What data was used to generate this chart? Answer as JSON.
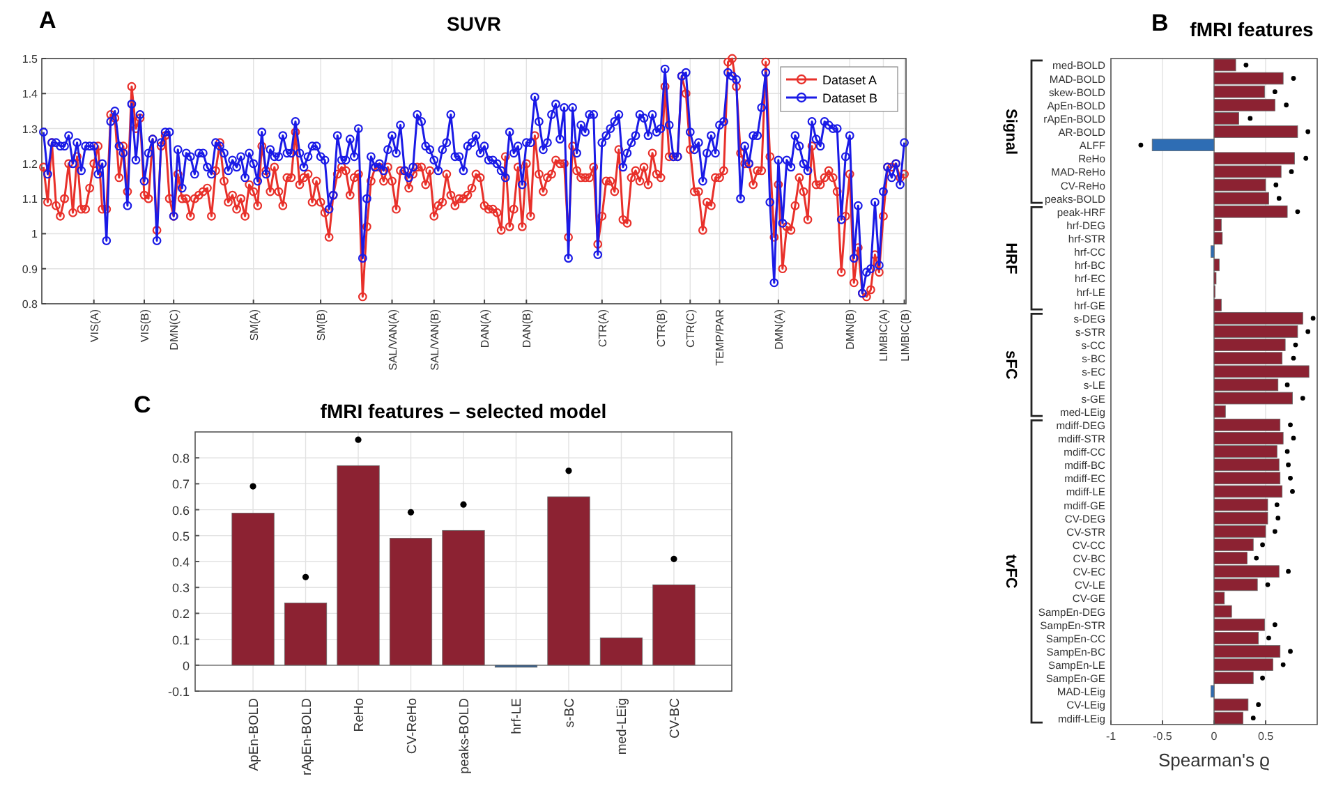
{
  "chart_data": [
    {
      "type": "line",
      "title": "SUVR",
      "annotations": [
        "A"
      ],
      "categories": [
        null,
        null,
        null,
        null,
        null,
        null,
        null,
        null,
        null,
        null,
        null,
        null,
        "VIS(A)",
        null,
        null,
        null,
        null,
        null,
        null,
        null,
        null,
        null,
        null,
        null,
        "VIS(B)",
        null,
        null,
        null,
        null,
        null,
        null,
        "DMN(C)",
        null,
        null,
        null,
        null,
        null,
        null,
        null,
        null,
        null,
        null,
        null,
        null,
        null,
        null,
        null,
        null,
        null,
        null,
        "SM(A)",
        null,
        null,
        null,
        null,
        null,
        null,
        null,
        null,
        null,
        null,
        null,
        null,
        null,
        null,
        null,
        "SM(B)",
        null,
        null,
        null,
        null,
        null,
        null,
        null,
        null,
        null,
        null,
        null,
        null,
        null,
        null,
        null,
        null,
        "SAL/VAN(A)",
        null,
        null,
        null,
        null,
        null,
        null,
        null,
        null,
        null,
        "SAL/VAN(B)",
        null,
        null,
        null,
        null,
        null,
        null,
        null,
        null,
        null,
        null,
        null,
        "DAN(A)",
        null,
        null,
        null,
        null,
        null,
        null,
        null,
        null,
        null,
        "DAN(B)",
        null,
        null,
        null,
        null,
        null,
        null,
        null,
        null,
        null,
        null,
        null,
        null,
        null,
        null,
        null,
        null,
        null,
        "CTR(A)",
        null,
        null,
        null,
        null,
        null,
        null,
        null,
        null,
        null,
        null,
        null,
        null,
        null,
        "CTR(B)",
        null,
        null,
        null,
        null,
        null,
        null,
        "CTR(C)",
        null,
        null,
        null,
        null,
        null,
        null,
        "TEMP/PAR",
        null,
        null,
        null,
        null,
        null,
        null,
        null,
        null,
        null,
        null,
        null,
        null,
        null,
        "DMN(A)",
        null,
        null,
        null,
        null,
        null,
        null,
        null,
        null,
        null,
        null,
        null,
        null,
        null,
        null,
        null,
        null,
        "DMN(B)",
        null,
        null,
        null,
        null,
        null,
        null,
        null,
        "LIMBIC(A)",
        null,
        null,
        null,
        null,
        "LIMBIC(B)"
      ],
      "ylim": [
        0.8,
        1.5
      ],
      "yticks": [
        0.8,
        0.9,
        1,
        1.1,
        1.2,
        1.3,
        1.4,
        1.5
      ],
      "grid": true,
      "legend": "top right",
      "marker": "circle",
      "line_style": "solid",
      "series": [
        {
          "name": "Dataset A",
          "color": "#e8302a",
          "values": [
            1.19,
            1.09,
            1.26,
            1.08,
            1.05,
            1.1,
            1.2,
            1.06,
            1.22,
            1.07,
            1.07,
            1.13,
            1.2,
            1.25,
            1.07,
            1.07,
            1.34,
            1.33,
            1.16,
            1.25,
            1.12,
            1.42,
            1.3,
            1.33,
            1.11,
            1.1,
            1.27,
            1.01,
            1.25,
            1.28,
            1.1,
            1.05,
            1.17,
            1.1,
            1.1,
            1.05,
            1.1,
            1.11,
            1.12,
            1.13,
            1.05,
            1.18,
            1.26,
            1.15,
            1.09,
            1.11,
            1.07,
            1.1,
            1.05,
            1.14,
            1.12,
            1.08,
            1.25,
            1.18,
            1.12,
            1.19,
            1.12,
            1.08,
            1.16,
            1.16,
            1.29,
            1.14,
            1.16,
            1.17,
            1.09,
            1.15,
            1.09,
            1.06,
            0.99,
            1.11,
            1.17,
            1.19,
            1.18,
            1.11,
            1.16,
            1.17,
            0.82,
            1.02,
            1.15,
            1.19,
            1.19,
            1.15,
            1.19,
            1.15,
            1.07,
            1.18,
            1.18,
            1.13,
            1.17,
            1.19,
            1.19,
            1.14,
            1.18,
            1.05,
            1.08,
            1.09,
            1.17,
            1.11,
            1.08,
            1.1,
            1.1,
            1.11,
            1.13,
            1.17,
            1.16,
            1.08,
            1.07,
            1.07,
            1.06,
            1.01,
            1.22,
            1.02,
            1.07,
            1.19,
            1.02,
            1.2,
            1.05,
            1.28,
            1.17,
            1.12,
            1.16,
            1.17,
            1.21,
            1.2,
            1.2,
            0.99,
            1.25,
            1.18,
            1.16,
            1.16,
            1.16,
            1.19,
            0.97,
            1.05,
            1.15,
            1.15,
            1.12,
            1.24,
            1.04,
            1.03,
            1.16,
            1.18,
            1.15,
            1.19,
            1.14,
            1.23,
            1.17,
            1.16,
            1.42,
            1.22,
            1.22,
            1.22,
            1.45,
            1.4,
            1.24,
            1.12,
            1.12,
            1.01,
            1.09,
            1.08,
            1.16,
            1.16,
            1.18,
            1.49,
            1.5,
            1.42,
            1.23,
            1.2,
            1.2,
            1.14,
            1.18,
            1.18,
            1.49,
            1.22,
            0.99,
            1.14,
            0.9,
            1.02,
            1.01,
            1.08,
            1.16,
            1.12,
            1.04,
            1.25,
            1.14,
            1.14,
            1.16,
            1.18,
            1.16,
            1.12,
            0.89,
            1.05,
            1.17,
            0.86,
            0.96,
            0.83,
            0.82,
            0.84,
            0.94,
            0.89,
            1.05,
            1.19,
            1.19,
            1.2,
            1.16,
            1.17
          ]
        },
        {
          "name": "Dataset B",
          "color": "#1a1ae6",
          "values": [
            1.29,
            1.17,
            1.26,
            1.26,
            1.25,
            1.25,
            1.28,
            1.2,
            1.26,
            1.18,
            1.25,
            1.25,
            1.25,
            1.17,
            1.2,
            0.98,
            1.32,
            1.35,
            1.25,
            1.23,
            1.08,
            1.37,
            1.21,
            1.34,
            1.15,
            1.23,
            1.27,
            0.98,
            1.26,
            1.29,
            1.29,
            1.05,
            1.24,
            1.13,
            1.23,
            1.22,
            1.17,
            1.23,
            1.23,
            1.19,
            1.17,
            1.26,
            1.25,
            1.23,
            1.18,
            1.21,
            1.19,
            1.22,
            1.16,
            1.23,
            1.2,
            1.15,
            1.29,
            1.17,
            1.24,
            1.22,
            1.22,
            1.28,
            1.23,
            1.23,
            1.32,
            1.23,
            1.19,
            1.22,
            1.25,
            1.25,
            1.22,
            1.21,
            1.07,
            1.11,
            1.28,
            1.21,
            1.21,
            1.27,
            1.22,
            1.3,
            0.93,
            1.1,
            1.22,
            1.19,
            1.2,
            1.18,
            1.24,
            1.28,
            1.23,
            1.31,
            1.18,
            1.16,
            1.19,
            1.34,
            1.32,
            1.25,
            1.24,
            1.21,
            1.18,
            1.24,
            1.26,
            1.34,
            1.22,
            1.22,
            1.18,
            1.25,
            1.26,
            1.28,
            1.23,
            1.25,
            1.21,
            1.21,
            1.2,
            1.18,
            1.16,
            1.29,
            1.23,
            1.25,
            1.14,
            1.26,
            1.26,
            1.39,
            1.32,
            1.24,
            1.26,
            1.34,
            1.37,
            1.27,
            1.36,
            0.93,
            1.36,
            1.23,
            1.31,
            1.29,
            1.34,
            1.34,
            0.94,
            1.26,
            1.28,
            1.3,
            1.32,
            1.34,
            1.19,
            1.23,
            1.26,
            1.28,
            1.34,
            1.33,
            1.28,
            1.34,
            1.29,
            1.3,
            1.47,
            1.31,
            1.22,
            1.22,
            1.45,
            1.46,
            1.29,
            1.24,
            1.26,
            1.15,
            1.23,
            1.28,
            1.23,
            1.31,
            1.32,
            1.46,
            1.45,
            1.44,
            1.1,
            1.25,
            1.2,
            1.28,
            1.28,
            1.36,
            1.46,
            1.09,
            0.86,
            1.21,
            1.03,
            1.21,
            1.19,
            1.28,
            1.25,
            1.2,
            1.18,
            1.32,
            1.27,
            1.25,
            1.32,
            1.31,
            1.3,
            1.3,
            1.04,
            1.22,
            1.28,
            0.93,
            1.08,
            0.83,
            0.89,
            0.9,
            1.09,
            0.91,
            1.12,
            1.19,
            1.16,
            1.2,
            1.14,
            1.26
          ]
        }
      ]
    },
    {
      "type": "bar",
      "orientation": "horizontal",
      "title": "fMRI features",
      "xlabel": "Spearman's ϱ",
      "annotations": [
        "B",
        "Signal",
        "HRF",
        "sFC",
        "tvFC"
      ],
      "categories": [
        "med-BOLD",
        "MAD-BOLD",
        "skew-BOLD",
        "ApEn-BOLD",
        "rApEn-BOLD",
        "AR-BOLD",
        "ALFF",
        "ReHo",
        "MAD-ReHo",
        "CV-ReHo",
        "peaks-BOLD",
        "peak-HRF",
        "hrf-DEG",
        "hrf-STR",
        "hrf-CC",
        "hrf-BC",
        "hrf-EC",
        "hrf-LE",
        "hrf-GE",
        "s-DEG",
        "s-STR",
        "s-CC",
        "s-BC",
        "s-EC",
        "s-LE",
        "s-GE",
        "med-LEig",
        "mdiff-DEG",
        "mdiff-STR",
        "mdiff-CC",
        "mdiff-BC",
        "mdiff-EC",
        "mdiff-LE",
        "mdiff-GE",
        "CV-DEG",
        "CV-STR",
        "CV-CC",
        "CV-BC",
        "CV-EC",
        "CV-LE",
        "CV-GE",
        "SampEn-DEG",
        "SampEn-STR",
        "SampEn-CC",
        "SampEn-BC",
        "SampEn-LE",
        "SampEn-GE",
        "MAD-LEig",
        "CV-LEig",
        "mdiff-LEig"
      ],
      "xlim": [
        -1,
        1
      ],
      "xticks": [
        -1,
        -0.5,
        0,
        0.5
      ],
      "grid": "x",
      "series": [
        {
          "type": "bar",
          "colors": [
            "#8c2232",
            "#8c2232",
            "#8c2232",
            "#8c2232",
            "#8c2232",
            "#8c2232",
            "#2e6db4",
            "#8c2232",
            "#8c2232",
            "#8c2232",
            "#8c2232",
            "#8c2232",
            "#8c2232",
            "#8c2232",
            "#2e6db4",
            "#8c2232",
            "#8c2232",
            "#8c2232",
            "#8c2232",
            "#8c2232",
            "#8c2232",
            "#8c2232",
            "#8c2232",
            "#8c2232",
            "#8c2232",
            "#8c2232",
            "#8c2232",
            "#8c2232",
            "#8c2232",
            "#8c2232",
            "#8c2232",
            "#8c2232",
            "#8c2232",
            "#8c2232",
            "#8c2232",
            "#8c2232",
            "#8c2232",
            "#8c2232",
            "#8c2232",
            "#8c2232",
            "#8c2232",
            "#8c2232",
            "#8c2232",
            "#8c2232",
            "#8c2232",
            "#8c2232",
            "#8c2232",
            "#2e6db4",
            "#8c2232",
            "#8c2232"
          ],
          "values": [
            0.21,
            0.67,
            0.49,
            0.59,
            0.24,
            0.81,
            -0.6,
            0.78,
            0.65,
            0.5,
            0.53,
            0.71,
            0.07,
            0.08,
            -0.03,
            0.05,
            0.02,
            0.01,
            0.07,
            0.86,
            0.81,
            0.69,
            0.66,
            0.92,
            0.62,
            0.76,
            0.11,
            0.64,
            0.67,
            0.61,
            0.63,
            0.64,
            0.66,
            0.52,
            0.52,
            0.5,
            0.38,
            0.32,
            0.63,
            0.42,
            0.1,
            0.17,
            0.49,
            0.43,
            0.64,
            0.57,
            0.38,
            -0.03,
            0.33,
            0.28
          ]
        },
        {
          "type": "scatter",
          "color": "#000000",
          "values": [
            0.31,
            0.77,
            0.59,
            0.7,
            0.35,
            0.91,
            -0.71,
            0.89,
            0.75,
            0.6,
            0.63,
            0.81,
            null,
            null,
            null,
            null,
            null,
            null,
            null,
            0.96,
            0.91,
            0.79,
            0.77,
            null,
            0.71,
            0.86,
            null,
            0.74,
            0.77,
            0.71,
            0.72,
            0.74,
            0.76,
            0.61,
            0.62,
            0.59,
            0.47,
            0.41,
            0.72,
            0.52,
            null,
            null,
            0.59,
            0.53,
            0.74,
            0.67,
            0.47,
            null,
            0.43,
            0.38
          ]
        }
      ]
    },
    {
      "type": "bar",
      "title": "fMRI features – selected model",
      "annotations": [
        "C"
      ],
      "categories": [
        "ApEn-BOLD",
        "rApEn-BOLD",
        "ReHo",
        "CV-ReHo",
        "peaks-BOLD",
        "hrf-LE",
        "s-BC",
        "med-LEig",
        "CV-BC"
      ],
      "ylim": [
        -0.1,
        0.9
      ],
      "yticks": [
        -0.1,
        0,
        0.1,
        0.2,
        0.3,
        0.4,
        0.5,
        0.6,
        0.7,
        0.8
      ],
      "grid": true,
      "series": [
        {
          "type": "bar",
          "colors": [
            "#8c2232",
            "#8c2232",
            "#8c2232",
            "#8c2232",
            "#8c2232",
            "#3a5f8a",
            "#8c2232",
            "#8c2232",
            "#8c2232"
          ],
          "values": [
            0.587,
            0.24,
            0.77,
            0.49,
            0.52,
            -0.008,
            0.65,
            0.105,
            0.31
          ]
        },
        {
          "type": "scatter",
          "color": "#000000",
          "values": [
            0.69,
            0.34,
            0.87,
            0.59,
            0.62,
            null,
            0.75,
            null,
            0.41
          ]
        }
      ]
    }
  ]
}
